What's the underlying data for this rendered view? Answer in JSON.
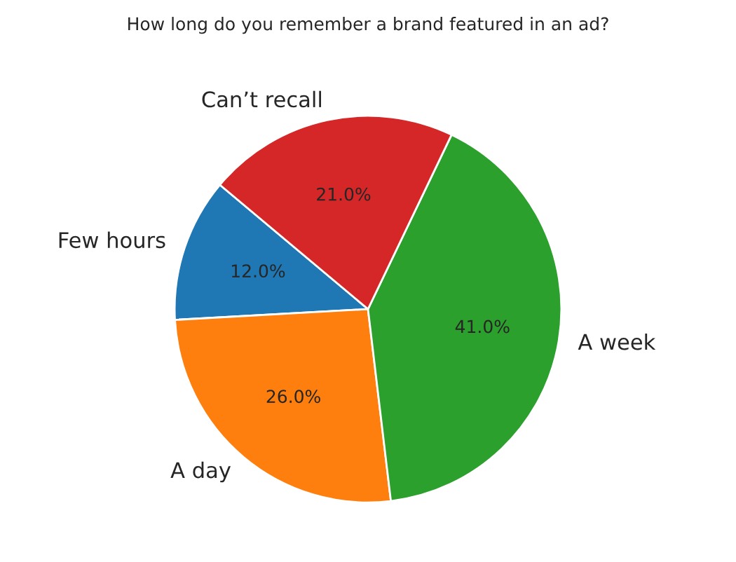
{
  "chart_data": {
    "type": "pie",
    "title": "How long do you remember a brand featured in an ad?",
    "categories": [
      "Few hours",
      "A day",
      "A week",
      "Can’t recall"
    ],
    "values": [
      12,
      26,
      41,
      21
    ],
    "colors": [
      "#1f77b4",
      "#ff7f0e",
      "#2ca02c",
      "#d62728"
    ],
    "value_labels": [
      "12.0%",
      "26.0%",
      "41.0%",
      "21.0%"
    ]
  }
}
